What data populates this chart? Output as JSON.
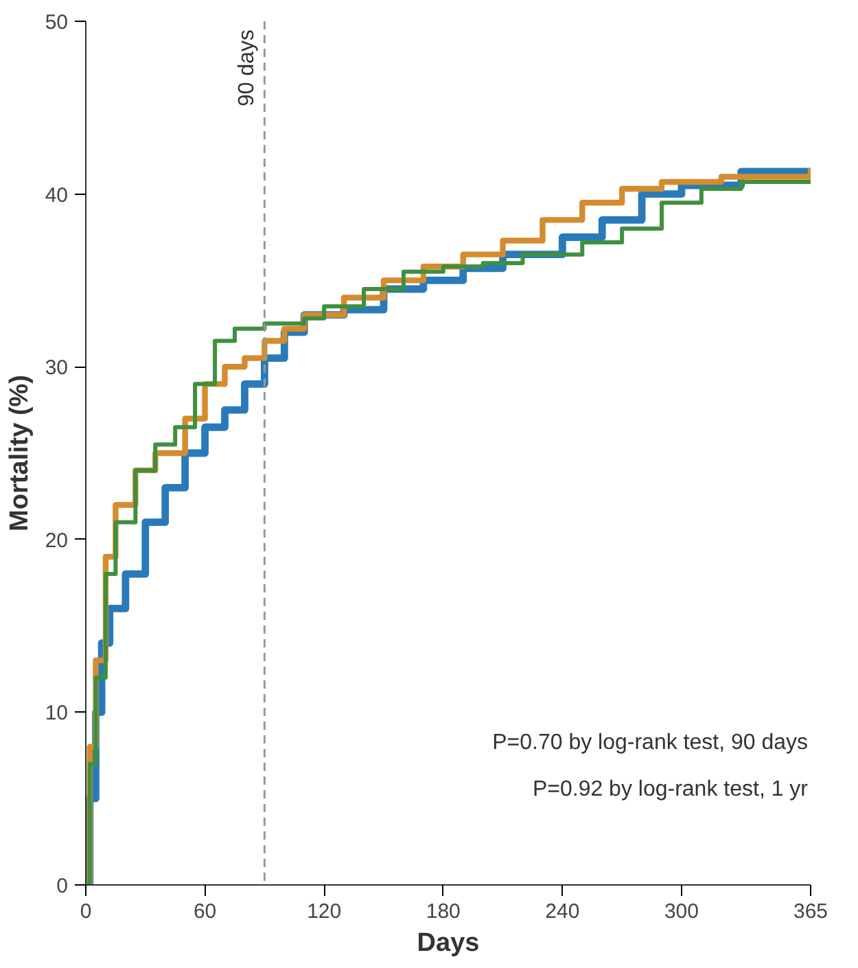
{
  "chart_data": {
    "type": "step",
    "xlabel": "Days",
    "ylabel": "Mortality (%)",
    "xlim": [
      0,
      365
    ],
    "ylim": [
      0,
      50
    ],
    "xticks": [
      0,
      60,
      120,
      180,
      240,
      300,
      365
    ],
    "yticks": [
      0,
      10,
      20,
      30,
      40,
      50
    ],
    "grid": false,
    "line_style": "solid",
    "marker": "none",
    "series": [
      {
        "color": "#2a7ab9",
        "x": [
          0,
          2,
          5,
          8,
          12,
          20,
          30,
          40,
          50,
          60,
          70,
          80,
          90,
          100,
          110,
          130,
          150,
          170,
          190,
          210,
          240,
          260,
          280,
          300,
          330,
          365
        ],
        "values": [
          0,
          5,
          10,
          14,
          16,
          18,
          21,
          23,
          25,
          26.5,
          27.5,
          29,
          30.5,
          32,
          33,
          33.3,
          34.5,
          35.0,
          35.7,
          36.5,
          37.5,
          38.5,
          40,
          40.5,
          41.3,
          41.3
        ]
      },
      {
        "color": "#d48c2e",
        "x": [
          0,
          2,
          5,
          10,
          15,
          25,
          35,
          50,
          60,
          70,
          80,
          90,
          100,
          110,
          130,
          150,
          170,
          190,
          210,
          230,
          250,
          270,
          290,
          320,
          365
        ],
        "values": [
          0,
          8,
          13,
          19,
          22,
          24,
          25,
          27,
          29,
          30,
          30.5,
          31.5,
          32.2,
          33,
          34,
          35,
          35.8,
          36.5,
          37.3,
          38.5,
          39.5,
          40.3,
          40.7,
          41,
          41.5
        ]
      },
      {
        "color": "#3f8f3f",
        "x": [
          0,
          2,
          5,
          10,
          15,
          25,
          35,
          45,
          55,
          65,
          75,
          90,
          110,
          120,
          140,
          160,
          180,
          200,
          220,
          250,
          270,
          290,
          310,
          330,
          365
        ],
        "values": [
          0,
          7,
          12,
          18,
          21,
          24,
          25.5,
          26.5,
          29,
          31.5,
          32.2,
          32.5,
          32.8,
          33.5,
          34.5,
          35.5,
          35.8,
          36,
          36.5,
          37.2,
          38,
          39.5,
          40.3,
          40.7,
          40.8
        ]
      }
    ],
    "ref_lines": [
      {
        "axis": "x",
        "value": 90,
        "label": "90 days",
        "color": "#999999",
        "line_style": "dashed"
      }
    ],
    "annotations": [
      "P=0.70 by log-rank test, 90 days",
      "P=0.92 by log-rank test, 1 yr"
    ]
  }
}
